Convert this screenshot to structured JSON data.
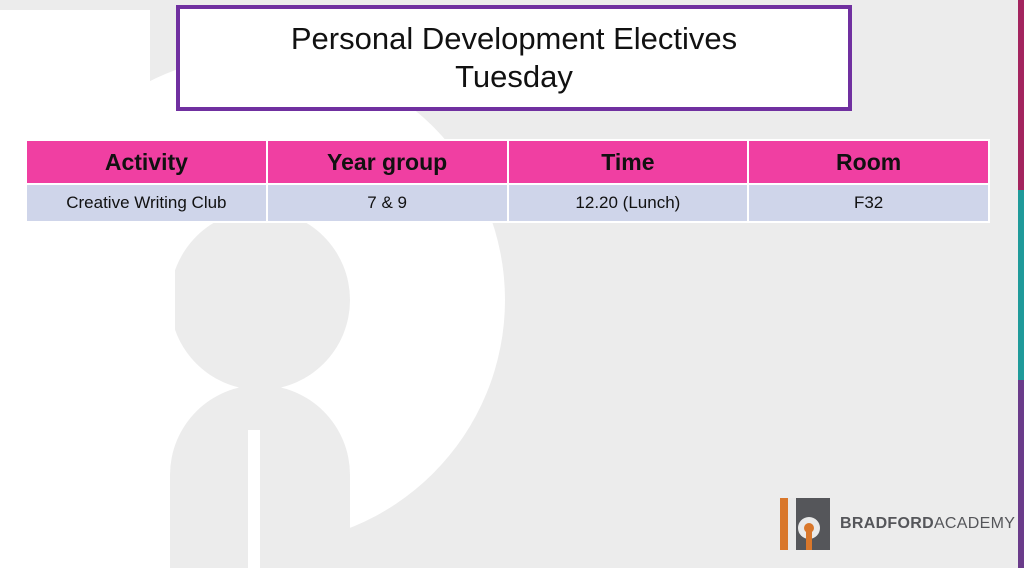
{
  "title": {
    "line1": "Personal Development Electives",
    "line2": "Tuesday"
  },
  "table": {
    "headers": [
      "Activity",
      "Year group",
      "Time",
      "Room"
    ],
    "rows": [
      [
        "Creative Writing Club",
        "7 & 9",
        "12.20 (Lunch)",
        "F32"
      ]
    ]
  },
  "brand": {
    "name_bold": "BRADFORD",
    "name_regular": "ACADEMY"
  },
  "colors": {
    "title_border": "#7030a0",
    "header_bg": "#f03fa2",
    "row_bg": "#cfd5ea",
    "brand_orange": "#d9772b",
    "brand_gray": "#55565a"
  }
}
